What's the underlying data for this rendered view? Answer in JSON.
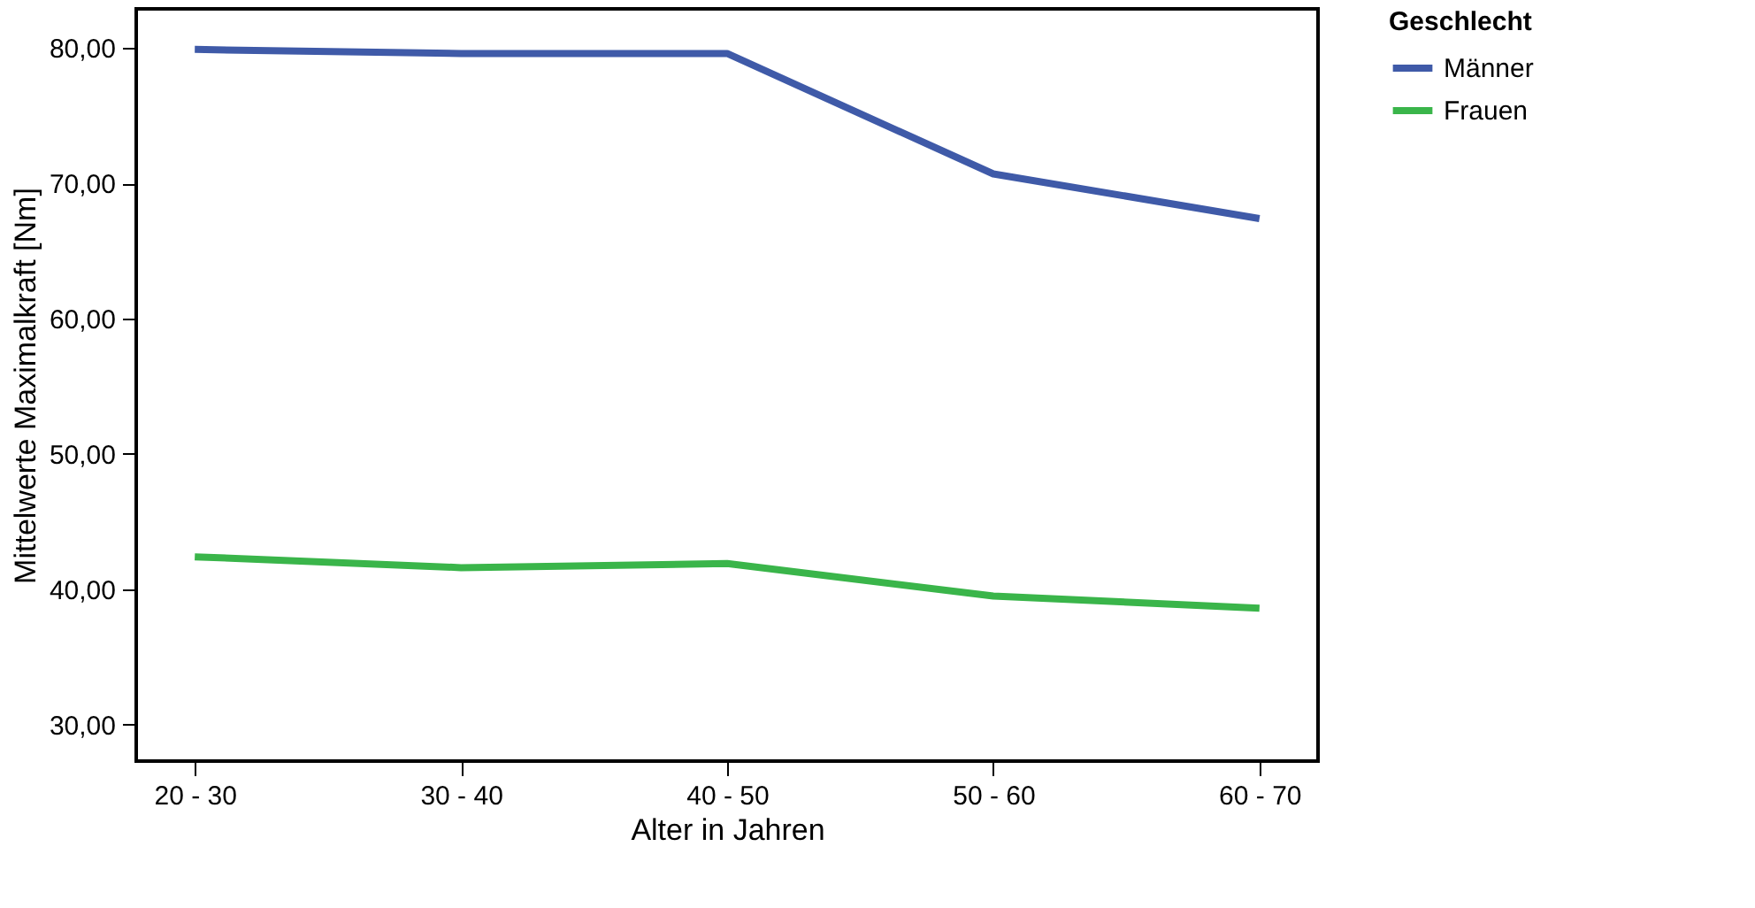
{
  "chart_data": {
    "type": "line",
    "xlabel": "Alter in Jahren",
    "ylabel": "Mittelwerte Maximalkraft [Nm]",
    "legend_title": "Geschlecht",
    "categories": [
      "20 - 30",
      "30 - 40",
      "40 - 50",
      "50 - 60",
      "60 - 70"
    ],
    "series": [
      {
        "name": "Männer",
        "color": "#3f5aa8",
        "values": [
          79.9,
          79.6,
          79.6,
          70.7,
          67.4
        ]
      },
      {
        "name": "Frauen",
        "color": "#3ab54a",
        "values": [
          42.4,
          41.6,
          41.9,
          39.5,
          38.6
        ]
      }
    ],
    "ylim": [
      27.3,
      82.9
    ],
    "yticks": [
      {
        "value": 30,
        "label": "30,00"
      },
      {
        "value": 40,
        "label": "40,00"
      },
      {
        "value": 50,
        "label": "50,00"
      },
      {
        "value": 60,
        "label": "60,00"
      },
      {
        "value": 70,
        "label": "70,00"
      },
      {
        "value": 80,
        "label": "80,00"
      }
    ],
    "grid": false,
    "legend": "right",
    "marker": "none",
    "line_style": "solid"
  }
}
